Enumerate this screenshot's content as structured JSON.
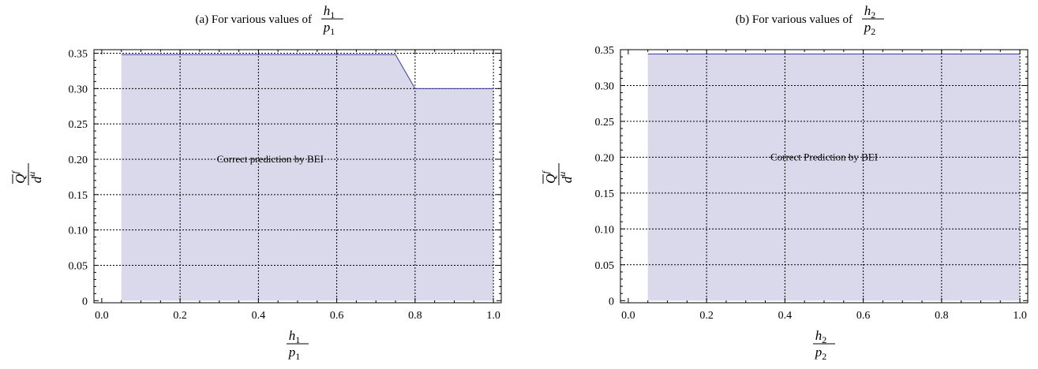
{
  "chart_data": [
    {
      "type": "area",
      "title_prefix": "(a) For various values of",
      "title_frac": {
        "num": "h",
        "num_sub": "1",
        "den": "p",
        "den_sub": "1"
      },
      "xlabel_frac": {
        "num": "h",
        "num_sub": "1",
        "den": "p",
        "den_sub": "1"
      },
      "ylabel_frac": {
        "num": "Q",
        "num_sup": "f",
        "den": "d",
        "den_sup": "u"
      },
      "xlim": [
        -0.02,
        1.02
      ],
      "ylim": [
        -0.003,
        0.355
      ],
      "x_ticks": [
        0.0,
        0.2,
        0.4,
        0.6,
        0.8,
        1.0
      ],
      "x_tick_labels": [
        "0.0",
        "0.2",
        "0.4",
        "0.6",
        "0.8",
        "1.0"
      ],
      "y_ticks": [
        0,
        0.05,
        0.1,
        0.15,
        0.2,
        0.25,
        0.3,
        0.35
      ],
      "y_tick_labels": [
        "0",
        "0.05",
        "0.10",
        "0.15",
        "0.20",
        "0.25",
        "0.30",
        "0.35"
      ],
      "grid": true,
      "fill_color": "#d9d9eb",
      "line_color": "#3c3c9e",
      "x": [
        0.05,
        0.75,
        0.8,
        1.0
      ],
      "y": [
        0.348,
        0.348,
        0.3,
        0.3
      ],
      "annotation": {
        "text": "Correct  prediction by BEI",
        "x": 0.43,
        "y": 0.2
      }
    },
    {
      "type": "area",
      "title_prefix": "(b) For various values of",
      "title_frac": {
        "num": "h",
        "num_sub": "2",
        "den": "p",
        "den_sub": "2"
      },
      "xlabel_frac": {
        "num": "h",
        "num_sub": "2",
        "den": "p",
        "den_sub": "2"
      },
      "ylabel_frac": {
        "num": "Q",
        "num_sup": "f",
        "den": "d",
        "den_sup": "u"
      },
      "xlim": [
        -0.02,
        1.02
      ],
      "ylim": [
        -0.003,
        0.35
      ],
      "x_ticks": [
        0.0,
        0.2,
        0.4,
        0.6,
        0.8,
        1.0
      ],
      "x_tick_labels": [
        "0.0",
        "0.2",
        "0.4",
        "0.6",
        "0.8",
        "1.0"
      ],
      "y_ticks": [
        0,
        0.05,
        0.1,
        0.15,
        0.2,
        0.25,
        0.3,
        0.35
      ],
      "y_tick_labels": [
        "0",
        "0.05",
        "0.10",
        "0.15",
        "0.20",
        "0.25",
        "0.30",
        "0.35"
      ],
      "grid": true,
      "fill_color": "#d9d9eb",
      "line_color": "#3c3c9e",
      "x": [
        0.05,
        1.0
      ],
      "y": [
        0.344,
        0.344
      ],
      "annotation": {
        "text": "Correct  Prediction by BEI",
        "x": 0.5,
        "y": 0.2
      }
    }
  ]
}
